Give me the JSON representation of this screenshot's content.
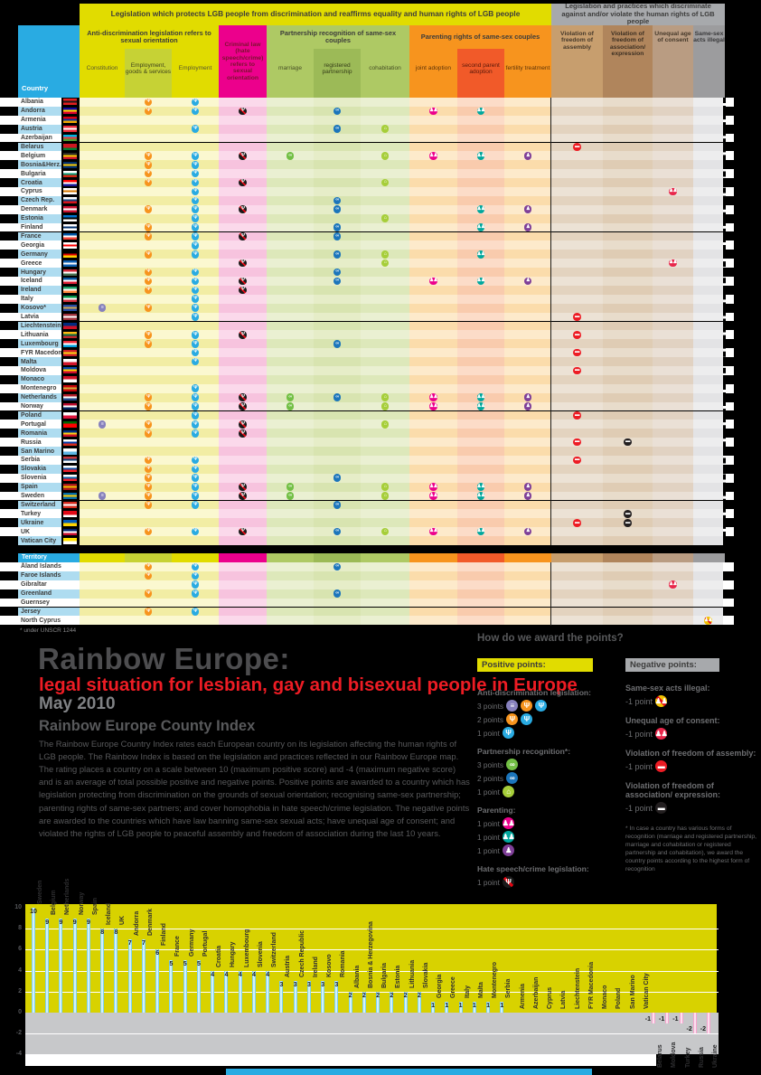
{
  "header": {
    "country_label": "Country",
    "territory_label": "Territory",
    "protect_title": "Legislation which protects LGB people from discrimination and reaffirms equality and human rights of LGB people",
    "discriminate_title": "Legislation and practices which discriminate against and/or violate the human rights of LGB people",
    "antidiscrimination_title": "Anti-discrimination legislation refers to sexual orientation",
    "criminal_title": "Criminal law (hate speech/crime) refers to sexual orientation",
    "partnership_title": "Partnership recognition of same-sex couples",
    "parenting_title": "Parenting rights of same-sex couples",
    "col_constitution": "Constitution",
    "col_employment_goods": "Employment, goods & services",
    "col_employment": "Employment",
    "col_marriage": "marriage",
    "col_registered_partnership": "registered partnership",
    "col_cohabitation": "cohabitation",
    "col_joint_adoption": "joint adoption",
    "col_second_parent": "second parent adoption",
    "col_fertility": "fertility treatment",
    "col_assembly": "Violation of freedom of assembly",
    "col_association": "Violation of freedom of association/ expression",
    "col_unequal_age": "Unequal age of consent",
    "col_illegal": "Same-sex acts illegal"
  },
  "countries": [
    {
      "name": "Albania",
      "flag": [
        "#e41e20",
        "#1a1a1a",
        "#e41e20"
      ],
      "cols": [
        "c2",
        "c3"
      ]
    },
    {
      "name": "Andorra",
      "flag": [
        "#10069f",
        "#fedd00",
        "#d50032"
      ],
      "cols": [
        "c2",
        "c3",
        "c4",
        "c6",
        "c8",
        "c9"
      ]
    },
    {
      "name": "Armenia",
      "flag": [
        "#d90012",
        "#0033a0",
        "#f2a800"
      ],
      "cols": []
    },
    {
      "name": "Austria",
      "flag": [
        "#ed2939",
        "#ffffff",
        "#ed2939"
      ],
      "cols": [
        "c3",
        "c6",
        "c7"
      ]
    },
    {
      "name": "Azerbaijan",
      "flag": [
        "#00b5e2",
        "#ef3340",
        "#509e2f"
      ],
      "cols": []
    },
    {
      "name": "Belarus",
      "flag": [
        "#ce1720",
        "#ce1720",
        "#007c30"
      ],
      "cols": [
        "c11"
      ]
    },
    {
      "name": "Belgium",
      "flag": [
        "#2d2926",
        "#ffcd00",
        "#c8102e"
      ],
      "cols": [
        "c2",
        "c3",
        "c4",
        "c5",
        "c7",
        "c8",
        "c9",
        "c10"
      ]
    },
    {
      "name": "Bosnia&Herz.",
      "flag": [
        "#002f6c",
        "#ffcd00",
        "#002f6c"
      ],
      "cols": [
        "c2",
        "c3"
      ]
    },
    {
      "name": "Bulgaria",
      "flag": [
        "#ffffff",
        "#00966e",
        "#d62612"
      ],
      "cols": [
        "c2",
        "c3"
      ]
    },
    {
      "name": "Croatia",
      "flag": [
        "#ff0000",
        "#ffffff",
        "#171796"
      ],
      "cols": [
        "c2",
        "c3",
        "c4",
        "c7"
      ]
    },
    {
      "name": "Cyprus",
      "flag": [
        "#ffffff",
        "#d57800",
        "#ffffff"
      ],
      "cols": [
        "c3",
        "c13"
      ]
    },
    {
      "name": "Czech Rep.",
      "flag": [
        "#ffffff",
        "#11457e",
        "#d7141a"
      ],
      "cols": [
        "c3",
        "c6"
      ]
    },
    {
      "name": "Denmark",
      "flag": [
        "#c8102e",
        "#ffffff",
        "#c8102e"
      ],
      "cols": [
        "c2",
        "c3",
        "c4",
        "c6",
        "c9",
        "c10"
      ]
    },
    {
      "name": "Estonia",
      "flag": [
        "#0072ce",
        "#000000",
        "#ffffff"
      ],
      "cols": [
        "c3",
        "c7"
      ]
    },
    {
      "name": "Finland",
      "flag": [
        "#ffffff",
        "#002f6c",
        "#ffffff"
      ],
      "cols": [
        "c2",
        "c3",
        "c6",
        "c9",
        "c10"
      ]
    },
    {
      "name": "France",
      "flag": [
        "#0055a4",
        "#ffffff",
        "#ef4135"
      ],
      "cols": [
        "c2",
        "c3",
        "c4",
        "c6"
      ]
    },
    {
      "name": "Georgia",
      "flag": [
        "#ffffff",
        "#ff0000",
        "#ffffff"
      ],
      "cols": [
        "c3"
      ]
    },
    {
      "name": "Germany",
      "flag": [
        "#000000",
        "#dd0000",
        "#ffce00"
      ],
      "cols": [
        "c2",
        "c3",
        "c6",
        "c7",
        "c9"
      ]
    },
    {
      "name": "Greece",
      "flag": [
        "#0d5eaf",
        "#ffffff",
        "#0d5eaf"
      ],
      "cols": [
        "c4",
        "c7",
        "c13"
      ]
    },
    {
      "name": "Hungary",
      "flag": [
        "#ce2939",
        "#ffffff",
        "#477050"
      ],
      "cols": [
        "c2",
        "c3",
        "c6"
      ]
    },
    {
      "name": "Iceland",
      "flag": [
        "#02529c",
        "#ffffff",
        "#dc1e35"
      ],
      "cols": [
        "c2",
        "c3",
        "c4",
        "c6",
        "c8",
        "c9",
        "c10"
      ]
    },
    {
      "name": "Ireland",
      "flag": [
        "#169b62",
        "#ffffff",
        "#ff883e"
      ],
      "cols": [
        "c2",
        "c3",
        "c4"
      ]
    },
    {
      "name": "Italy",
      "flag": [
        "#009246",
        "#ffffff",
        "#ce2b37"
      ],
      "cols": [
        "c3"
      ]
    },
    {
      "name": "Kosovo*",
      "flag": [
        "#244aa5",
        "#d0a650",
        "#244aa5"
      ],
      "cols": [
        "c1",
        "c2",
        "c3"
      ]
    },
    {
      "name": "Latvia",
      "flag": [
        "#9e3039",
        "#ffffff",
        "#9e3039"
      ],
      "cols": [
        "c3",
        "c11"
      ]
    },
    {
      "name": "Liechtenstein",
      "flag": [
        "#002b7f",
        "#ce1126"
      ],
      "cols": []
    },
    {
      "name": "Lithuania",
      "flag": [
        "#fdb913",
        "#006a44",
        "#c1272d"
      ],
      "cols": [
        "c2",
        "c3",
        "c4",
        "c11"
      ]
    },
    {
      "name": "Luxembourg",
      "flag": [
        "#ed2939",
        "#ffffff",
        "#00a1de"
      ],
      "cols": [
        "c2",
        "c3",
        "c6"
      ]
    },
    {
      "name": "FYR Macedonia",
      "flag": [
        "#ce2028",
        "#f9d616",
        "#ce2028"
      ],
      "cols": [
        "c3",
        "c11"
      ]
    },
    {
      "name": "Malta",
      "flag": [
        "#ffffff",
        "#cf142b"
      ],
      "cols": [
        "c3"
      ]
    },
    {
      "name": "Moldova",
      "flag": [
        "#0046ae",
        "#ffd200",
        "#cc092f"
      ],
      "cols": [
        "c11"
      ]
    },
    {
      "name": "Monaco",
      "flag": [
        "#ce1126",
        "#ffffff"
      ],
      "cols": []
    },
    {
      "name": "Montenegro",
      "flag": [
        "#c40308",
        "#d3ae3b",
        "#c40308"
      ],
      "cols": [
        "c3"
      ]
    },
    {
      "name": "Netherlands",
      "flag": [
        "#ae1c28",
        "#ffffff",
        "#21468b"
      ],
      "cols": [
        "c2",
        "c3",
        "c4",
        "c5",
        "c6",
        "c7",
        "c8",
        "c9",
        "c10"
      ]
    },
    {
      "name": "Norway",
      "flag": [
        "#ba0c2f",
        "#ffffff",
        "#00205b"
      ],
      "cols": [
        "c2",
        "c3",
        "c4",
        "c5",
        "c7",
        "c8",
        "c9",
        "c10"
      ]
    },
    {
      "name": "Poland",
      "flag": [
        "#ffffff",
        "#dc143c"
      ],
      "cols": [
        "c3",
        "c11"
      ]
    },
    {
      "name": "Portugal",
      "flag": [
        "#006600",
        "#ff0000",
        "#ff0000"
      ],
      "cols": [
        "c1",
        "c2",
        "c3",
        "c4",
        "c7"
      ]
    },
    {
      "name": "Romania",
      "flag": [
        "#002b7f",
        "#fcd116",
        "#ce1126"
      ],
      "cols": [
        "c2",
        "c3",
        "c4"
      ]
    },
    {
      "name": "Russia",
      "flag": [
        "#ffffff",
        "#0039a6",
        "#d52b1e"
      ],
      "cols": [
        "c11",
        "c12"
      ]
    },
    {
      "name": "San Marino",
      "flag": [
        "#ffffff",
        "#5eb6e4"
      ],
      "cols": []
    },
    {
      "name": "Serbia",
      "flag": [
        "#c6363c",
        "#0c4077",
        "#ffffff"
      ],
      "cols": [
        "c2",
        "c3",
        "c11"
      ]
    },
    {
      "name": "Slovakia",
      "flag": [
        "#ffffff",
        "#0b4ea2",
        "#ee1c25"
      ],
      "cols": [
        "c2",
        "c3"
      ]
    },
    {
      "name": "Slovenia",
      "flag": [
        "#ffffff",
        "#005da4",
        "#ed1c24"
      ],
      "cols": [
        "c2",
        "c3",
        "c6"
      ]
    },
    {
      "name": "Spain",
      "flag": [
        "#aa151b",
        "#f1bf00",
        "#aa151b"
      ],
      "cols": [
        "c2",
        "c3",
        "c4",
        "c5",
        "c7",
        "c8",
        "c9",
        "c10"
      ]
    },
    {
      "name": "Sweden",
      "flag": [
        "#006aa7",
        "#fecc00",
        "#006aa7"
      ],
      "cols": [
        "c1",
        "c2",
        "c3",
        "c4",
        "c5",
        "c7",
        "c8",
        "c9",
        "c10"
      ]
    },
    {
      "name": "Switzerland",
      "flag": [
        "#d52b1e",
        "#ffffff",
        "#d52b1e"
      ],
      "cols": [
        "c2",
        "c3",
        "c6"
      ]
    },
    {
      "name": "Turkey",
      "flag": [
        "#e30a17",
        "#e30a17",
        "#ffffff"
      ],
      "cols": [
        "c12"
      ]
    },
    {
      "name": "Ukraine",
      "flag": [
        "#005bbb",
        "#ffd500"
      ],
      "cols": [
        "c11",
        "c12"
      ]
    },
    {
      "name": "UK",
      "flag": [
        "#012169",
        "#ffffff",
        "#c8102e"
      ],
      "cols": [
        "c2",
        "c3",
        "c4",
        "c6",
        "c7",
        "c8",
        "c9",
        "c10"
      ]
    },
    {
      "name": "Vatican City",
      "flag": [
        "#ffe000",
        "#ffffff"
      ],
      "cols": []
    }
  ],
  "territories": [
    {
      "name": "Åland Islands",
      "cols": [
        "c2",
        "c3",
        "c6"
      ]
    },
    {
      "name": "Faroe Islands",
      "cols": [
        "c2",
        "c3"
      ]
    },
    {
      "name": "Gibraltar",
      "cols": [
        "c3",
        "c13"
      ]
    },
    {
      "name": "Greenland",
      "cols": [
        "c2",
        "c3",
        "c6"
      ]
    },
    {
      "name": "Guernsey",
      "cols": []
    },
    {
      "name": "Jersey",
      "cols": [
        "c2",
        "c3"
      ]
    },
    {
      "name": "North Cyprus",
      "cols": [
        "c14"
      ]
    }
  ],
  "territory_footnote": "* under UNSCR 1244",
  "intro": {
    "title": "Rainbow Europe:",
    "subtitle": "legal situation for lesbian, gay and bisexual people in Europe",
    "date": "May 2010",
    "index_heading": "Rainbow Europe County Index",
    "body": "The Rainbow Europe Country Index rates each European country on its legislation affecting the human rights of LGB people. The Rainbow Index is based on the legislation and practices reflected in our Rainbow Europe map. The rating places a country on a scale between 10 (maximum positive score) and -4 (maximum negative score) and is an average of total possible positive and negative points. Positive points are awarded to a country which has legislation protecting from discrimination on the grounds of sexual orientation; recognising same-sex partnership; parenting rights of same-sex partners; and cover homophobia in hate speech/crime legislation. The negative points are awarded to the countries which have law banning same-sex sexual acts; have unequal age of consent; and violated the rights of LGB people to peaceful assembly and freedom of association during the last 10 years."
  },
  "legend": {
    "title": "How do we award the points?",
    "positive_title": "Positive points:",
    "negative_title": "Negative points:",
    "positive": [
      {
        "label": "Anti-discrimination legislation:",
        "rows": [
          {
            "points": "3 points",
            "icons": [
              "c1",
              "c2",
              "c3"
            ]
          },
          {
            "points": "2 points",
            "icons": [
              "c2",
              "c3"
            ]
          },
          {
            "points": "1 point",
            "icons": [
              "c3"
            ]
          }
        ]
      },
      {
        "label": "Partnership recognition*:",
        "rows": [
          {
            "points": "3 points",
            "icons": [
              "c5"
            ]
          },
          {
            "points": "2 points",
            "icons": [
              "c6"
            ]
          },
          {
            "points": "1 point",
            "icons": [
              "c7"
            ]
          }
        ]
      },
      {
        "label": "Parenting:",
        "rows": [
          {
            "points": "1 point",
            "icons": [
              "c8"
            ]
          },
          {
            "points": "1 point",
            "icons": [
              "c9"
            ]
          },
          {
            "points": "1 point",
            "icons": [
              "c10"
            ]
          }
        ]
      },
      {
        "label": "Hate speech/crime legislation:",
        "rows": [
          {
            "points": "1 point",
            "icons": [
              "c4"
            ]
          }
        ]
      }
    ],
    "negative": [
      {
        "label": "Same-sex acts illegal:",
        "points": "-1 point",
        "icon": "c14"
      },
      {
        "label": "Unequal age of consent:",
        "points": "-1 point",
        "icon": "c13"
      },
      {
        "label": "Violation of freedom of assembly:",
        "points": "-1 point",
        "icon": "c11"
      },
      {
        "label": "Violation of freedom of association/ expression:",
        "points": "-1 point",
        "icon": "c12"
      }
    ],
    "footnote": "* In case a country has various forms of recognition (marriage and registered partnership, marriage and cohabitation or registered partnership and cohabitation), we award the country points according to the highest form of recognition"
  },
  "chart_data": {
    "type": "bar",
    "title": "Rainbow Europe Country Index - May 2010",
    "categories": [
      "Sweden",
      "Belgium",
      "Netherlands",
      "Norway",
      "Spain",
      "Iceland",
      "UK",
      "Andorra",
      "Denmark",
      "Finland",
      "France",
      "Germany",
      "Portugal",
      "Croatia",
      "Hungary",
      "Luxembourg",
      "Slovenia",
      "Switzerland",
      "Austria",
      "Czech Republic",
      "Ireland",
      "Kosovo",
      "Romania",
      "Albania",
      "Bosnia & Herzegovina",
      "Bulgaria",
      "Estonia",
      "Lithuania",
      "Slovakia",
      "Georgia",
      "Greece",
      "Italy",
      "Malta",
      "Montenegro",
      "Serbia",
      "Armenia",
      "Azerbaijan",
      "Cyprus",
      "Latvia",
      "Liechtenstein",
      "FYR Macedonia",
      "Monaco",
      "Poland",
      "San Marino",
      "Vatican City",
      "Belarus",
      "Moldova",
      "Turkey",
      "Russia",
      "Ukraine"
    ],
    "values": [
      10,
      9,
      9,
      9,
      9,
      8,
      8,
      7,
      7,
      6,
      5,
      5,
      5,
      4,
      4,
      4,
      4,
      4,
      3,
      3,
      3,
      3,
      3,
      2,
      2,
      2,
      2,
      2,
      2,
      1,
      1,
      1,
      1,
      1,
      1,
      0,
      0,
      0,
      0,
      0,
      0,
      0,
      0,
      0,
      0,
      -1,
      -1,
      -1,
      -2,
      -2
    ],
    "ylim": [
      -4,
      10
    ],
    "yticks": [
      10,
      8,
      6,
      4,
      2,
      0,
      -2,
      -4
    ],
    "positive_bar_color": "#4fc2ee",
    "negative_bar_color": "#f286be",
    "plot_positive_bg": "#d8d200",
    "plot_negative_bg": "#c7c8ca",
    "legend_position": "none",
    "grid": true
  }
}
